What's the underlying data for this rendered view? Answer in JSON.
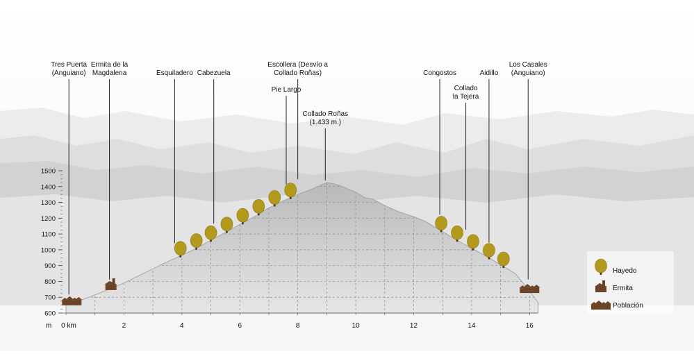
{
  "chart_data": {
    "type": "area",
    "title": "",
    "xlabel": "",
    "ylabel": "m",
    "x_unit_label": "0 km",
    "xlim": [
      0,
      16.4
    ],
    "ylim": [
      600,
      1500
    ],
    "x_ticks": [
      0,
      2,
      4,
      6,
      8,
      10,
      12,
      14,
      16
    ],
    "x_tick_labels": [
      "0 km",
      "2",
      "4",
      "6",
      "8",
      "10",
      "12",
      "14",
      "16"
    ],
    "y_ticks": [
      600,
      700,
      800,
      900,
      1000,
      1100,
      1200,
      1300,
      1400,
      1500
    ],
    "y_tick_labels": [
      "600",
      "700",
      "800",
      "900",
      "1000",
      "1100",
      "1200",
      "1300",
      "1400",
      "1500"
    ],
    "grid": true,
    "profile": {
      "x": [
        0,
        0.5,
        1.0,
        1.5,
        2.0,
        2.5,
        3.0,
        3.5,
        4.0,
        4.5,
        5.0,
        5.5,
        6.0,
        6.5,
        7.0,
        7.5,
        8.0,
        8.5,
        8.8,
        9.0,
        9.3,
        9.6,
        10.0,
        10.3,
        10.6,
        11.0,
        11.5,
        12.0,
        12.4,
        13.0,
        13.5,
        14.0,
        14.5,
        15.0,
        15.5,
        16.0,
        16.3
      ],
      "y": [
        650,
        680,
        715,
        750,
        790,
        835,
        880,
        925,
        965,
        1010,
        1060,
        1110,
        1160,
        1210,
        1265,
        1310,
        1350,
        1385,
        1410,
        1425,
        1415,
        1395,
        1365,
        1330,
        1320,
        1280,
        1240,
        1210,
        1180,
        1115,
        1060,
        1010,
        960,
        905,
        850,
        740,
        665
      ]
    },
    "landmarks": [
      {
        "label": "Tres Puerta\n(Anguiano)",
        "x": 0.1,
        "type": "poblacion"
      },
      {
        "label": "Ermita de la\nMagdalena",
        "x": 1.5,
        "type": "ermita"
      },
      {
        "label": "Esquiladero",
        "x": 3.75,
        "type": "hayedo"
      },
      {
        "label": "Cabezuela",
        "x": 5.1,
        "type": "hayedo"
      },
      {
        "label": "Pie Largo",
        "x": 7.6,
        "type": "hayedo"
      },
      {
        "label": "Escollera (Desvío a\nCollado Roñas)",
        "x": 8.0,
        "type": "hayedo"
      },
      {
        "label": "Collado Roñas\n(1.433 m.)",
        "x": 8.95,
        "type": "summit"
      },
      {
        "label": "Congostos",
        "x": 12.9,
        "type": "hayedo"
      },
      {
        "label": "Collado\nla Tejera",
        "x": 13.8,
        "type": "hayedo"
      },
      {
        "label": "Aidillo",
        "x": 14.6,
        "type": "hayedo"
      },
      {
        "label": "Los Casales\n(Anguiano)",
        "x": 15.95,
        "type": "poblacion"
      }
    ],
    "trees_x": [
      3.95,
      4.5,
      5.0,
      5.55,
      6.1,
      6.65,
      7.2,
      7.75,
      12.95,
      13.5,
      14.05,
      14.6,
      15.1
    ],
    "villages_x": [
      0.2,
      16.0
    ],
    "ermita_x": [
      1.55
    ],
    "legend": [
      {
        "icon": "tree-icon",
        "label": "Hayedo"
      },
      {
        "icon": "chapel-icon",
        "label": "Ermita"
      },
      {
        "icon": "village-icon",
        "label": "Población"
      }
    ],
    "legend_position": "bottom-right",
    "colors": {
      "profile_fill": "#c6c6c6",
      "tree": "#b39a1c",
      "trunk": "#4a3320",
      "building": "#6b4326",
      "leader": "#222222",
      "text": "#111111",
      "grid": "#8a8a8a"
    }
  }
}
